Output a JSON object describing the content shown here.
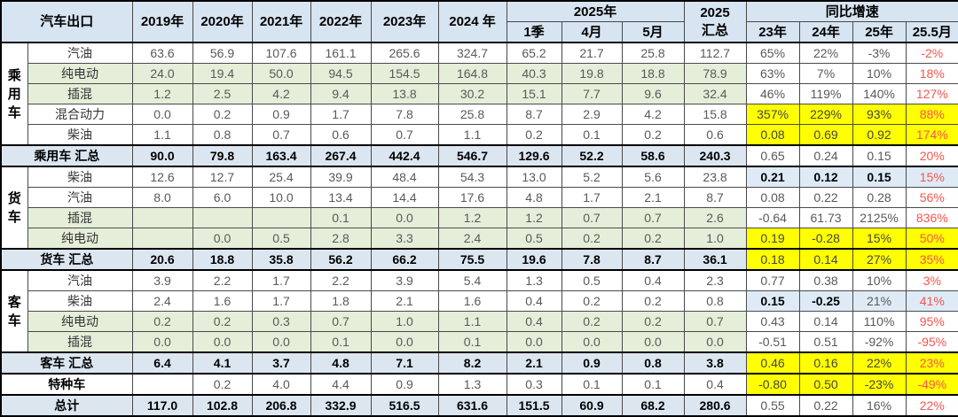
{
  "colors": {
    "header_blue": "#D7E4F1",
    "summary_blue": "#DCE6F1",
    "growth_blue": "#DEEBF7",
    "row_green": "#E5EED9",
    "highlight_yellow": "#FFFF00",
    "red_text": "#FA544C"
  },
  "chart_data": {
    "type": "table",
    "header": {
      "title": "汽车出口",
      "years": [
        "2019年",
        "2020年",
        "2021年",
        "2022年",
        "2023年",
        "2024 年"
      ],
      "group_2025": "2025年",
      "months_2025": [
        "1季",
        "4月",
        "5月"
      ],
      "total_2025": [
        "2025",
        "汇总"
      ],
      "growth_group": "同比增速",
      "growth_cols": [
        "23年",
        "24年",
        "25年",
        "25.5月"
      ]
    },
    "rows": [
      {
        "group": "乘用车",
        "group_span": 5,
        "label": "汽油",
        "bg": "white",
        "values": [
          "63.6",
          "56.9",
          "107.6",
          "161.1",
          "265.6",
          "324.7",
          "65.2",
          "21.7",
          "25.8",
          "112.7"
        ],
        "growth": [
          "65%",
          "22%",
          "-3%",
          "-2%"
        ],
        "growth_style": [
          "w",
          "w",
          "w",
          "w"
        ]
      },
      {
        "label": "纯电动",
        "bg": "green",
        "values": [
          "24.0",
          "19.4",
          "50.0",
          "94.5",
          "154.5",
          "164.8",
          "40.3",
          "19.8",
          "18.8",
          "78.9"
        ],
        "growth": [
          "63%",
          "7%",
          "10%",
          "18%"
        ],
        "growth_style": [
          "w",
          "w",
          "w",
          "w"
        ]
      },
      {
        "label": "插混",
        "bg": "green",
        "values": [
          "1.2",
          "2.5",
          "4.2",
          "9.4",
          "13.8",
          "30.2",
          "15.1",
          "7.7",
          "9.6",
          "32.4"
        ],
        "growth": [
          "46%",
          "119%",
          "140%",
          "127%"
        ],
        "growth_style": [
          "w",
          "w",
          "w",
          "w"
        ]
      },
      {
        "label": "混合动力",
        "bg": "white",
        "values": [
          "0.0",
          "0.2",
          "0.9",
          "1.7",
          "7.8",
          "25.8",
          "8.7",
          "2.9",
          "4.2",
          "15.8"
        ],
        "growth": [
          "357%",
          "229%",
          "93%",
          "88%"
        ],
        "growth_style": [
          "y",
          "y",
          "y",
          "y"
        ]
      },
      {
        "label": "柴油",
        "bg": "white",
        "values": [
          "1.1",
          "0.8",
          "0.7",
          "0.6",
          "0.7",
          "1.1",
          "0.2",
          "0.1",
          "0.2",
          "0.6"
        ],
        "growth": [
          "0.08",
          "0.69",
          "0.92",
          "174%"
        ],
        "growth_style": [
          "y",
          "y",
          "y",
          "y"
        ]
      },
      {
        "label": "乘用车 汇总",
        "merged": true,
        "sum": true,
        "bg": "blue",
        "values": [
          "90.0",
          "79.8",
          "163.4",
          "267.4",
          "442.4",
          "546.7",
          "129.6",
          "52.2",
          "58.6",
          "240.3"
        ],
        "growth": [
          "0.65",
          "0.24",
          "0.15",
          "20%"
        ],
        "growth_style": [
          "w",
          "w",
          "w",
          "w"
        ]
      },
      {
        "group": "货车",
        "group_span": 4,
        "label": "柴油",
        "bg": "white",
        "values": [
          "12.6",
          "12.7",
          "25.4",
          "39.9",
          "48.4",
          "54.3",
          "13.0",
          "5.2",
          "5.6",
          "23.8"
        ],
        "growth": [
          "0.21",
          "0.12",
          "0.15",
          "15%"
        ],
        "growth_style": [
          "B",
          "B",
          "B",
          "b"
        ]
      },
      {
        "label": "汽油",
        "bg": "white",
        "values": [
          "8.0",
          "6.0",
          "10.0",
          "13.4",
          "14.4",
          "17.6",
          "4.8",
          "1.7",
          "2.1",
          "8.7"
        ],
        "growth": [
          "0.08",
          "0.22",
          "0.28",
          "56%"
        ],
        "growth_style": [
          "w",
          "w",
          "w",
          "w"
        ]
      },
      {
        "label": "插混",
        "bg": "green",
        "values": [
          "",
          "",
          "",
          "0.1",
          "0.0",
          "1.2",
          "1.2",
          "0.7",
          "0.7",
          "2.6"
        ],
        "growth": [
          "-0.64",
          "61.73",
          "2125%",
          "836%"
        ],
        "growth_style": [
          "w",
          "w",
          "w",
          "w"
        ]
      },
      {
        "label": "纯电动",
        "bg": "green",
        "values": [
          "",
          "0.0",
          "0.5",
          "2.8",
          "3.3",
          "2.4",
          "0.5",
          "0.2",
          "0.2",
          "1.0"
        ],
        "growth": [
          "0.19",
          "-0.28",
          "15%",
          "50%"
        ],
        "growth_style": [
          "y",
          "y",
          "y",
          "y"
        ]
      },
      {
        "label": "货车 汇总",
        "merged": true,
        "sum": true,
        "bg": "blue",
        "values": [
          "20.6",
          "18.8",
          "35.8",
          "56.2",
          "66.2",
          "75.5",
          "19.6",
          "7.8",
          "8.7",
          "36.1"
        ],
        "growth": [
          "0.18",
          "0.14",
          "27%",
          "35%"
        ],
        "growth_style": [
          "y",
          "y",
          "y",
          "y"
        ]
      },
      {
        "group": "客车",
        "group_span": 4,
        "label": "汽油",
        "bg": "white",
        "values": [
          "3.9",
          "2.2",
          "1.7",
          "2.2",
          "3.9",
          "5.4",
          "1.3",
          "0.5",
          "0.4",
          "2.3"
        ],
        "growth": [
          "0.77",
          "0.38",
          "10%",
          "3%"
        ],
        "growth_style": [
          "w",
          "w",
          "w",
          "w"
        ]
      },
      {
        "label": "柴油",
        "bg": "white",
        "values": [
          "2.4",
          "1.6",
          "1.7",
          "1.8",
          "2.1",
          "1.6",
          "0.4",
          "0.2",
          "0.2",
          "0.8"
        ],
        "growth": [
          "0.15",
          "-0.25",
          "21%",
          "41%"
        ],
        "growth_style": [
          "B",
          "B",
          "b",
          "b"
        ]
      },
      {
        "label": "纯电动",
        "bg": "green",
        "values": [
          "0.2",
          "0.2",
          "0.3",
          "0.7",
          "1.0",
          "1.1",
          "0.4",
          "0.2",
          "0.2",
          "0.7"
        ],
        "growth": [
          "0.43",
          "0.14",
          "110%",
          "95%"
        ],
        "growth_style": [
          "w",
          "w",
          "w",
          "w"
        ]
      },
      {
        "label": "插混",
        "bg": "green",
        "values": [
          "0.0",
          "0.0",
          "0.0",
          "0.1",
          "0.0",
          "0.1",
          "0.0",
          "0.0",
          "0.0",
          "0.0"
        ],
        "growth": [
          "-0.51",
          "0.51",
          "-92%",
          "-95%"
        ],
        "growth_style": [
          "w",
          "w",
          "w",
          "w"
        ]
      },
      {
        "label": "客车 汇总",
        "merged": true,
        "sum": true,
        "bg": "blue",
        "values": [
          "6.4",
          "4.1",
          "3.7",
          "4.8",
          "7.1",
          "8.2",
          "2.1",
          "0.9",
          "0.8",
          "3.8"
        ],
        "growth": [
          "0.46",
          "0.16",
          "22%",
          "23%"
        ],
        "growth_style": [
          "y",
          "y",
          "y",
          "y"
        ]
      },
      {
        "label": "特种车",
        "merged": true,
        "bold_label": true,
        "bg": "white",
        "values": [
          "",
          "0.2",
          "4.0",
          "4.4",
          "0.9",
          "1.3",
          "0.3",
          "0.1",
          "0.1",
          "0.4"
        ],
        "growth": [
          "-0.80",
          "0.50",
          "-23%",
          "-49%"
        ],
        "growth_style": [
          "y",
          "y",
          "y",
          "y"
        ]
      },
      {
        "label": "总计",
        "merged": true,
        "sum": true,
        "bg": "blue",
        "values": [
          "117.0",
          "102.8",
          "206.8",
          "332.9",
          "516.5",
          "631.6",
          "151.5",
          "60.9",
          "68.2",
          "280.6"
        ],
        "growth": [
          "0.55",
          "0.22",
          "16%",
          "22%"
        ],
        "growth_style": [
          "w",
          "w",
          "w",
          "w"
        ]
      }
    ]
  }
}
